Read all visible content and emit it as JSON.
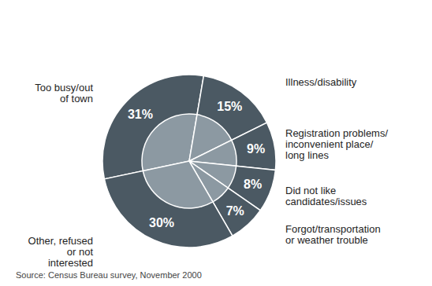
{
  "chart_data": {
    "type": "pie",
    "categories": [
      "Too busy/out of town",
      "Illness/disability",
      "Registration problems/inconvenient place/long lines",
      "Did not like candidates/issues",
      "Forgot/transportation or weather trouble",
      "Other, refused or not interested"
    ],
    "values": [
      31,
      15,
      9,
      8,
      7,
      30
    ],
    "value_labels": [
      "31%",
      "15%",
      "9%",
      "8%",
      "7%",
      "30%"
    ],
    "color": "#4b5963",
    "data_labels": true,
    "source": "Source: Census Bureau survey, November 2000"
  }
}
